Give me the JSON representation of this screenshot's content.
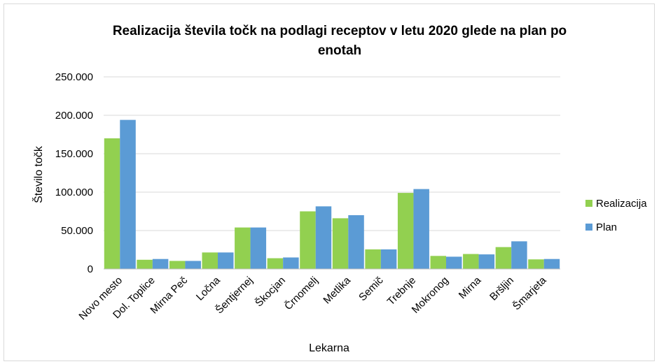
{
  "chart_data": {
    "type": "bar",
    "title_line1": "Realizacija števila točk na podlagi receptov v letu 2020 glede na plan po",
    "title_line2": "enotah",
    "xlabel": "Lekarna",
    "ylabel": "Število točk",
    "ylim": [
      0,
      250000
    ],
    "y_ticks": [
      "0",
      "50.000",
      "100.000",
      "150.000",
      "200.000",
      "250.000"
    ],
    "y_tick_values": [
      0,
      50000,
      100000,
      150000,
      200000,
      250000
    ],
    "grid": true,
    "legend_position": "right",
    "categories": [
      "Novo mesto",
      "Dol. Toplice",
      "Mirna Peč",
      "Ločna",
      "Šentjernej",
      "Škocjan",
      "Črnomelj",
      "Metlika",
      "Semič",
      "Trebnje",
      "Mokronog",
      "Mirna",
      "Bršljin",
      "Šmarjeta"
    ],
    "series": [
      {
        "name": "Realizacija",
        "color": "#92d050",
        "values": [
          170000,
          12000,
          10500,
          21500,
          54000,
          14000,
          75000,
          66000,
          25500,
          99000,
          17000,
          19500,
          28500,
          12500
        ]
      },
      {
        "name": "Plan",
        "color": "#5b9bd5",
        "values": [
          194000,
          13000,
          10500,
          21500,
          54000,
          15000,
          81500,
          70000,
          25500,
          104000,
          16000,
          19000,
          36000,
          13000
        ]
      }
    ]
  }
}
